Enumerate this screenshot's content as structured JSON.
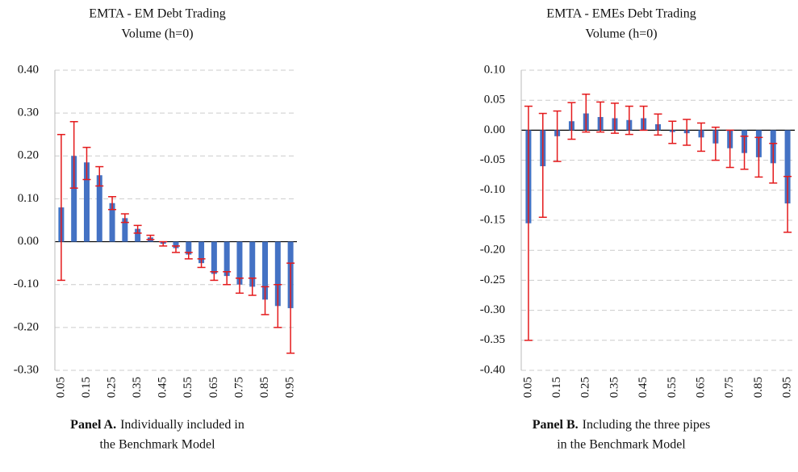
{
  "chart_data": [
    {
      "type": "bar",
      "title": [
        "EMTA - EM Debt Trading",
        "Volume (h=0)"
      ],
      "caption_label": "Panel A.",
      "caption": [
        "Individually included in",
        "the Benchmark Model"
      ],
      "categories": [
        "0.05",
        null,
        "0.15",
        null,
        "0.25",
        null,
        "0.35",
        null,
        "0.45",
        null,
        "0.55",
        null,
        "0.65",
        null,
        "0.75",
        null,
        "0.85",
        null,
        "0.95"
      ],
      "values": [
        0.08,
        0.2,
        0.185,
        0.155,
        0.09,
        0.055,
        0.03,
        0.01,
        -0.005,
        -0.015,
        -0.03,
        -0.05,
        -0.075,
        -0.08,
        -0.1,
        -0.105,
        -0.135,
        -0.15,
        -0.155
      ],
      "ci_low": [
        -0.09,
        0.125,
        0.145,
        0.13,
        0.075,
        0.045,
        0.02,
        0.005,
        -0.01,
        -0.025,
        -0.04,
        -0.06,
        -0.09,
        -0.1,
        -0.12,
        -0.125,
        -0.17,
        -0.2,
        -0.26
      ],
      "ci_high": [
        0.25,
        0.28,
        0.22,
        0.175,
        0.105,
        0.065,
        0.038,
        0.015,
        0.0,
        -0.01,
        -0.025,
        -0.04,
        -0.07,
        -0.07,
        -0.085,
        -0.085,
        -0.105,
        -0.1,
        -0.05
      ],
      "color": "#4472c4",
      "error_color": "#e41a1c",
      "ylim": [
        -0.3,
        0.4
      ],
      "yticks": [
        {
          "value": -0.3,
          "label": "-0.30"
        },
        {
          "value": -0.2,
          "label": "-0.20"
        },
        {
          "value": -0.1,
          "label": "-0.10"
        },
        {
          "value": 0,
          "label": "0.00"
        },
        {
          "value": 0.1,
          "label": "0.10"
        },
        {
          "value": 0.2,
          "label": "0.20"
        },
        {
          "value": 0.3,
          "label": "0.30"
        },
        {
          "value": 0.4,
          "label": "0.40"
        }
      ],
      "grid": true
    },
    {
      "type": "bar",
      "title": [
        "EMTA - EMEs Debt Trading",
        "Volume (h=0)"
      ],
      "caption_label": "Panel B.",
      "caption": [
        "Including the three pipes",
        "in the Benchmark Model"
      ],
      "categories": [
        "0.05",
        null,
        "0.15",
        null,
        "0.25",
        null,
        "0.35",
        null,
        "0.45",
        null,
        "0.55",
        null,
        "0.65",
        null,
        "0.75",
        null,
        "0.85",
        null,
        "0.95"
      ],
      "values": [
        -0.155,
        -0.06,
        -0.01,
        0.015,
        0.028,
        0.022,
        0.02,
        0.017,
        0.02,
        0.01,
        -0.003,
        -0.005,
        -0.012,
        -0.022,
        -0.03,
        -0.038,
        -0.045,
        -0.055,
        -0.122
      ],
      "ci_low": [
        -0.35,
        -0.145,
        -0.052,
        -0.015,
        -0.003,
        -0.003,
        -0.005,
        -0.007,
        0.0,
        -0.008,
        -0.022,
        -0.025,
        -0.035,
        -0.05,
        -0.062,
        -0.065,
        -0.078,
        -0.088,
        -0.17
      ],
      "ci_high": [
        0.04,
        0.028,
        0.032,
        0.046,
        0.06,
        0.047,
        0.045,
        0.04,
        0.04,
        0.027,
        0.015,
        0.018,
        0.012,
        0.005,
        0.0,
        -0.01,
        -0.012,
        -0.022,
        -0.077
      ],
      "color": "#4472c4",
      "error_color": "#e41a1c",
      "ylim": [
        -0.4,
        0.1
      ],
      "yticks": [
        {
          "value": -0.4,
          "label": "-0.40"
        },
        {
          "value": -0.35,
          "label": "-0.35"
        },
        {
          "value": -0.3,
          "label": "-0.30"
        },
        {
          "value": -0.25,
          "label": "-0.25"
        },
        {
          "value": -0.2,
          "label": "-0.20"
        },
        {
          "value": -0.15,
          "label": "-0.15"
        },
        {
          "value": -0.1,
          "label": "-0.10"
        },
        {
          "value": -0.05,
          "label": "-0.05"
        },
        {
          "value": 0,
          "label": "0.00"
        },
        {
          "value": 0.05,
          "label": "0.05"
        },
        {
          "value": 0.1,
          "label": "0.10"
        }
      ],
      "grid": true
    }
  ]
}
